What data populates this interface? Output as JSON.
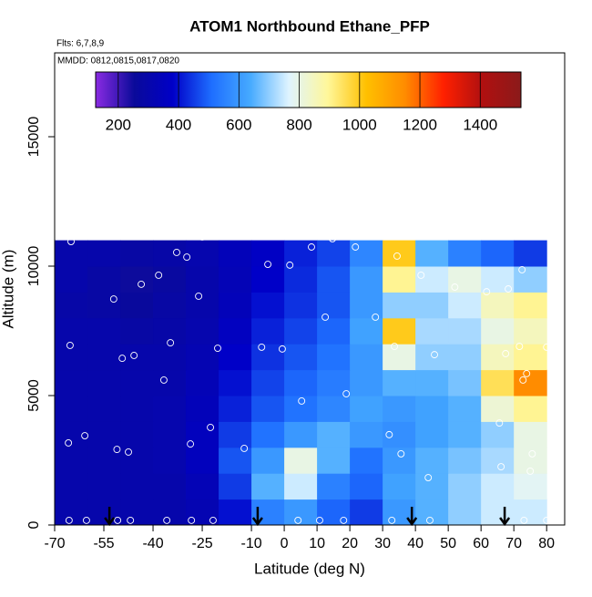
{
  "chart_data": {
    "type": "heatmap",
    "title": "ATOM1 Northbound Ethane_PFP",
    "subtitle": "Flts: 6,7,8,9",
    "annotation": "MMDD: 0812,0815,0817,0820",
    "xlabel": "Latitude (deg N)",
    "ylabel": "Altitude (m)",
    "xlim": [
      -70,
      85.5
    ],
    "ylim": [
      0,
      18240
    ],
    "xticks": [
      -70,
      -55,
      -40,
      -25,
      -10,
      0,
      10,
      20,
      30,
      40,
      50,
      60,
      70,
      80
    ],
    "yticks": [
      0,
      5000,
      10000,
      15000
    ],
    "clim": [
      125,
      1535
    ],
    "colorbar_ticks": [
      200,
      400,
      600,
      800,
      1000,
      1200,
      1400
    ],
    "colors": [
      "#8a2be2",
      "#0a0a9a",
      "#0000c8",
      "#1e6eff",
      "#46aaff",
      "#dff4ff",
      "#fff79a",
      "#ffc000",
      "#ff8c00",
      "#ff2000",
      "#b01010",
      "#8b1a1a"
    ],
    "lat_edges": [
      -70,
      -60,
      -50,
      -40,
      -30,
      -20,
      -10,
      0,
      10,
      20,
      30,
      40,
      50,
      60,
      70,
      80
    ],
    "alt_edges": [
      0,
      1000,
      2000,
      3000,
      4000,
      5000,
      6000,
      7000,
      8000,
      9000,
      10000,
      11000
    ],
    "z": [
      [
        300,
        300,
        300,
        300,
        320,
        400,
        550,
        600,
        500,
        450,
        600,
        650,
        700,
        750,
        750
      ],
      [
        300,
        300,
        300,
        300,
        330,
        450,
        650,
        750,
        550,
        500,
        620,
        650,
        700,
        750,
        780
      ],
      [
        300,
        300,
        300,
        310,
        350,
        480,
        600,
        800,
        650,
        520,
        600,
        650,
        680,
        720,
        800
      ],
      [
        300,
        300,
        300,
        310,
        350,
        450,
        520,
        600,
        650,
        600,
        580,
        620,
        650,
        700,
        800
      ],
      [
        300,
        300,
        300,
        310,
        340,
        420,
        480,
        520,
        560,
        620,
        600,
        620,
        650,
        820,
        900
      ],
      [
        300,
        300,
        300,
        300,
        330,
        400,
        460,
        500,
        540,
        600,
        650,
        650,
        680,
        950,
        1150
      ],
      [
        300,
        300,
        300,
        300,
        320,
        380,
        440,
        480,
        520,
        600,
        800,
        700,
        700,
        850,
        900
      ],
      [
        300,
        300,
        280,
        290,
        310,
        360,
        420,
        460,
        500,
        620,
        1000,
        720,
        720,
        800,
        850
      ],
      [
        290,
        280,
        260,
        280,
        300,
        340,
        400,
        440,
        480,
        600,
        700,
        700,
        750,
        850,
        900
      ],
      [
        300,
        280,
        250,
        270,
        300,
        330,
        380,
        430,
        480,
        600,
        900,
        750,
        800,
        750,
        700
      ],
      [
        300,
        300,
        280,
        290,
        310,
        340,
        370,
        420,
        460,
        560,
        1000,
        650,
        550,
        500,
        450
      ]
    ],
    "points": {
      "lat": [
        -65,
        -65.3,
        -65.8,
        -60.8,
        -52,
        -49.4,
        -45.8,
        -43.6,
        -38.3,
        -36.7,
        -34.7,
        -32.8,
        -29.7,
        -26.1,
        -25,
        -22.5,
        -20.3,
        -28.6,
        -51,
        -47.5,
        -12.2,
        -13.6,
        -5,
        1.7,
        -6.9,
        -0.6,
        5.3,
        8.3,
        12.5,
        14.7,
        18.9,
        21.7,
        27.8,
        32,
        33.6,
        34.4,
        35.6,
        41.7,
        45.8,
        43.9,
        52,
        61.7,
        66.1,
        67.5,
        68.3,
        71.7,
        72.8,
        73.9,
        75,
        75.6,
        72.5,
        70.6,
        80,
        65.6,
        -65.6,
        -60.3,
        -50.8,
        -46.9,
        -35.8,
        -28.3,
        -21.7,
        4.2,
        10.8,
        18.1,
        32.8,
        44.4,
        73.1,
        80
      ],
      "alt": [
        10950,
        6940,
        3170,
        3450,
        8730,
        6440,
        6550,
        9300,
        9650,
        5600,
        7040,
        10530,
        10350,
        8840,
        11130,
        3770,
        6830,
        3130,
        2920,
        2820,
        2960,
        11270,
        10070,
        10040,
        6870,
        6800,
        4790,
        10740,
        8030,
        11060,
        5070,
        10740,
        8030,
        3490,
        6900,
        10390,
        2750,
        9650,
        6580,
        1830,
        9190,
        9010,
        2250,
        6620,
        9120,
        6900,
        5600,
        5850,
        2080,
        2750,
        9860,
        11200,
        6870,
        3940,
        180,
        180,
        180,
        180,
        180,
        180,
        180,
        180,
        180,
        180,
        180,
        180,
        180,
        180
      ]
    },
    "arrows": [
      -53.3,
      -8.1,
      38.9,
      67.2
    ]
  }
}
